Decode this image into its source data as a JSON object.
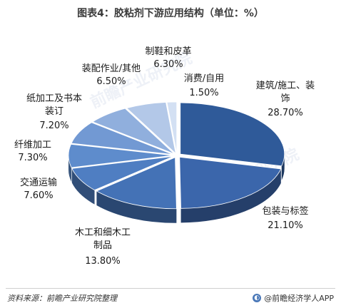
{
  "chart_data": {
    "type": "pie",
    "title": "图表4：胶粘剂下游应用结构（单位：%）",
    "slices": [
      {
        "label": "建筑/施工、装饰",
        "value_text": "28.70%",
        "value": 28.7,
        "color": "#2f5a99"
      },
      {
        "label": "包装与标签",
        "value_text": "21.10%",
        "value": 21.1,
        "color": "#3b66ab"
      },
      {
        "label": "木工和细木工制品",
        "value_text": "13.80%",
        "value": 13.8,
        "color": "#4472b6"
      },
      {
        "label": "交通运输",
        "value_text": "7.60%",
        "value": 7.6,
        "color": "#4f7ec2"
      },
      {
        "label": "纤维加工",
        "value_text": "7.30%",
        "value": 7.3,
        "color": "#5e8ccc"
      },
      {
        "label": "纸加工及书本装订",
        "value_text": "7.20%",
        "value": 7.2,
        "color": "#7299d3"
      },
      {
        "label": "装配作业/其他",
        "value_text": "6.50%",
        "value": 6.5,
        "color": "#90afdd"
      },
      {
        "label": "制鞋和皮革",
        "value_text": "6.30%",
        "value": 6.3,
        "color": "#b3c8e8"
      },
      {
        "label": "消费/自用",
        "value_text": "1.50%",
        "value": 1.5,
        "color": "#d3e0f3"
      }
    ]
  },
  "footer": {
    "source": "资料来源：前瞻产业研究院整理",
    "brand": "@前瞻经济学人APP",
    "brand_icon": "qianzhan-logo-icon"
  },
  "watermark": "前瞻产业研究院"
}
